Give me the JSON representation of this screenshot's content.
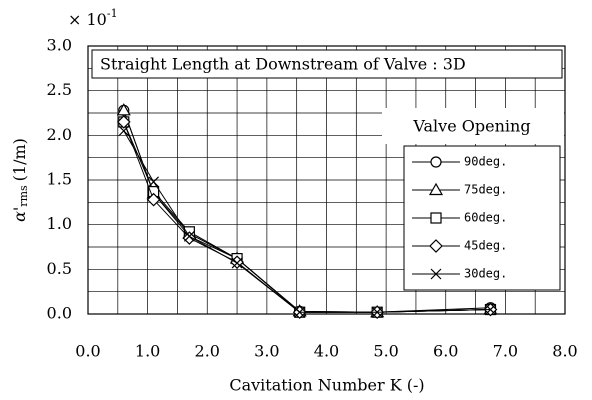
{
  "chart_data": {
    "type": "line",
    "annotation": "Straight Length at Downstream of Valve : 3D",
    "xlabel": "Cavitation Number K (-)",
    "ylabel": {
      "symbol": "α'",
      "sub": "rms",
      "unit": "(1/m)"
    },
    "y_scale": {
      "base": "× 10",
      "exponent": "-1"
    },
    "legend_title": "Valve Opening",
    "x": [
      0.6,
      1.1,
      1.7,
      2.5,
      3.55,
      4.85,
      6.75
    ],
    "series": [
      {
        "name": "90deg.",
        "color": "#000000",
        "marker": "circle",
        "values": [
          2.28,
          1.35,
          0.87,
          0.62,
          0.03,
          0.02,
          0.07
        ]
      },
      {
        "name": "75deg.",
        "color": "#000000",
        "marker": "triangle",
        "values": [
          2.28,
          1.35,
          0.9,
          0.62,
          0.03,
          0.02,
          0.05
        ]
      },
      {
        "name": "60deg.",
        "color": "#000000",
        "marker": "square",
        "values": [
          2.15,
          1.37,
          0.92,
          0.62,
          0.02,
          0.02,
          0.05
        ]
      },
      {
        "name": "45deg.",
        "color": "#000000",
        "marker": "diamond",
        "values": [
          2.15,
          1.28,
          0.85,
          0.58,
          0.02,
          0.02,
          0.05
        ]
      },
      {
        "name": "30deg.",
        "color": "#000000",
        "marker": "x",
        "values": [
          2.05,
          1.48,
          0.87,
          0.57,
          0.02,
          0.02,
          0.05
        ]
      }
    ],
    "xlim": [
      0,
      8
    ],
    "xticks": [
      {
        "value": 0,
        "label": "0.0"
      },
      {
        "value": 1,
        "label": "1.0"
      },
      {
        "value": 2,
        "label": "2.0"
      },
      {
        "value": 3,
        "label": "3.0"
      },
      {
        "value": 4,
        "label": "4.0"
      },
      {
        "value": 5,
        "label": "5.0"
      },
      {
        "value": 6,
        "label": "6.0"
      },
      {
        "value": 7,
        "label": "7.0"
      },
      {
        "value": 8,
        "label": "8.0"
      }
    ],
    "x_minor_ticks": [
      0.5,
      1.5,
      2.5,
      3.5,
      4.5,
      5.5,
      6.5,
      7.5
    ],
    "ylim": [
      0,
      3
    ],
    "yticks": [
      {
        "value": 0,
        "label": "0.0"
      },
      0.5,
      {
        "value": 1,
        "label": "1.0"
      },
      1.5,
      {
        "value": 2,
        "label": "2.0"
      },
      2.5,
      {
        "value": 3,
        "label": "3.0"
      }
    ],
    "y_minor_ticks": [
      0.25,
      0.75,
      1.25,
      1.75,
      2.25,
      2.75
    ],
    "grid": true
  }
}
